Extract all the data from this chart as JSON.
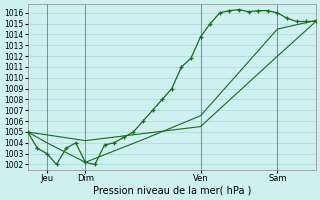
{
  "title": "",
  "xlabel": "Pression niveau de la mer( hPa )",
  "bg_color": "#cef0f0",
  "grid_color": "#aadada",
  "line_color": "#1a6b1a",
  "vline_color": "#888888",
  "ylim": [
    1001.5,
    1016.8
  ],
  "yticks": [
    1002,
    1003,
    1004,
    1005,
    1006,
    1007,
    1008,
    1009,
    1010,
    1011,
    1012,
    1013,
    1014,
    1015,
    1016
  ],
  "xlim": [
    0,
    180
  ],
  "xtick_positions": [
    12,
    36,
    108,
    156
  ],
  "xtick_labels": [
    "Jeu",
    "Dim",
    "Ven",
    "Sam"
  ],
  "vline_positions": [
    12,
    36,
    108,
    156
  ],
  "series1_x": [
    0,
    6,
    12,
    18,
    24,
    30,
    36,
    42,
    48,
    54,
    60,
    66,
    72,
    78,
    84,
    90,
    96,
    102,
    108,
    114,
    120,
    126,
    132,
    138,
    144,
    150,
    156,
    162,
    168,
    174,
    180
  ],
  "series1_y": [
    1005,
    1003.5,
    1003,
    1002,
    1003.5,
    1004,
    1002.2,
    1002,
    1003.8,
    1004,
    1004.5,
    1005,
    1006,
    1007,
    1008,
    1009,
    1011.0,
    1011.8,
    1013.8,
    1015,
    1016.0,
    1016.2,
    1016.3,
    1016.1,
    1016.2,
    1016.2,
    1016.0,
    1015.5,
    1015.2,
    1015.2,
    1015.2
  ],
  "series2_x": [
    0,
    36,
    108,
    156,
    180
  ],
  "series2_y": [
    1005,
    1004.2,
    1005.5,
    1012.0,
    1015.2
  ],
  "series3_x": [
    0,
    12,
    36,
    72,
    108,
    156,
    180
  ],
  "series3_y": [
    1005,
    1004.0,
    1002.2,
    1004.3,
    1006.5,
    1014.5,
    1015.3
  ],
  "ytick_fontsize": 5.5,
  "xtick_fontsize": 6.0,
  "xlabel_fontsize": 7.0
}
